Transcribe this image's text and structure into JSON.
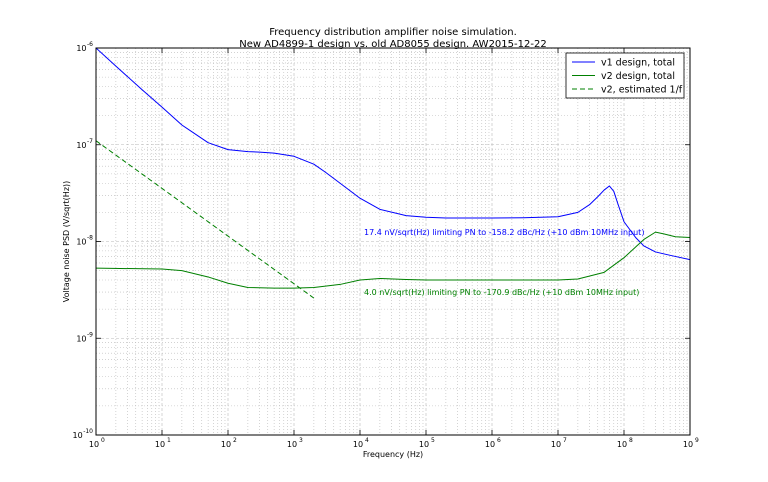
{
  "chart_data": {
    "type": "line",
    "title": "Frequency distribution amplifier noise simulation.",
    "subtitle": "New AD4899-1 design vs. old AD8055 design. AW2015-12-22",
    "xlabel": "Frequency (Hz)",
    "ylabel": "Voltage noise PSD (V/sqrt(Hz))",
    "xscale": "log",
    "yscale": "log",
    "xlim": [
      1,
      1000000000
    ],
    "ylim": [
      1e-10,
      1e-06
    ],
    "grid": true,
    "legend_position": "top-right",
    "x_ticks": [
      {
        "base": "10",
        "exp": "0",
        "value": 1
      },
      {
        "base": "10",
        "exp": "1",
        "value": 10
      },
      {
        "base": "10",
        "exp": "2",
        "value": 100
      },
      {
        "base": "10",
        "exp": "3",
        "value": 1000
      },
      {
        "base": "10",
        "exp": "4",
        "value": 10000
      },
      {
        "base": "10",
        "exp": "5",
        "value": 100000
      },
      {
        "base": "10",
        "exp": "6",
        "value": 1000000
      },
      {
        "base": "10",
        "exp": "7",
        "value": 10000000
      },
      {
        "base": "10",
        "exp": "8",
        "value": 100000000
      },
      {
        "base": "10",
        "exp": "9",
        "value": 1000000000
      }
    ],
    "y_ticks": [
      {
        "base": "10",
        "exp": "-10",
        "value": 1e-10
      },
      {
        "base": "10",
        "exp": "-9",
        "value": 1e-09
      },
      {
        "base": "10",
        "exp": "-8",
        "value": 1e-08
      },
      {
        "base": "10",
        "exp": "-7",
        "value": 1e-07
      },
      {
        "base": "10",
        "exp": "-6",
        "value": 1e-06
      }
    ],
    "series": [
      {
        "name": "v1 design, total",
        "color": "#0000ff",
        "dash": "solid",
        "x": [
          1,
          2,
          5,
          10,
          20,
          50,
          100,
          200,
          300,
          500,
          1000,
          2000,
          3000,
          5000,
          10000,
          20000,
          50000,
          100000,
          200000,
          1000000,
          3000000,
          10000000,
          20000000,
          30000000,
          40000000,
          50000000,
          60000000,
          70000000,
          80000000,
          100000000,
          150000000,
          200000000,
          300000000,
          500000000,
          1000000000
        ],
        "y": [
          1e-06,
          6.5e-07,
          3.7e-07,
          2.45e-07,
          1.6e-07,
          1.05e-07,
          8.9e-08,
          8.5e-08,
          8.4e-08,
          8.2e-08,
          7.6e-08,
          6.3e-08,
          5.2e-08,
          4e-08,
          2.8e-08,
          2.15e-08,
          1.85e-08,
          1.78e-08,
          1.75e-08,
          1.75e-08,
          1.76e-08,
          1.8e-08,
          2e-08,
          2.4e-08,
          2.9e-08,
          3.4e-08,
          3.75e-08,
          3.3e-08,
          2.5e-08,
          1.6e-08,
          1.1e-08,
          9e-09,
          7.8e-09,
          7.2e-09,
          6.5e-09
        ]
      },
      {
        "name": "v2 design, total",
        "color": "#008000",
        "dash": "solid",
        "x": [
          1,
          10,
          20,
          50,
          100,
          200,
          500,
          1000,
          2000,
          5000,
          10000,
          20000,
          50000,
          100000,
          1000000,
          10000000,
          20000000,
          50000000,
          100000000,
          200000000,
          300000000,
          400000000,
          600000000,
          1000000000
        ],
        "y": [
          5.3e-09,
          5.2e-09,
          5e-09,
          4.3e-09,
          3.7e-09,
          3.35e-09,
          3.3e-09,
          3.3e-09,
          3.35e-09,
          3.6e-09,
          4e-09,
          4.15e-09,
          4.05e-09,
          4e-09,
          4e-09,
          4e-09,
          4.1e-09,
          4.8e-09,
          6.8e-09,
          1.05e-08,
          1.25e-08,
          1.2e-08,
          1.12e-08,
          1.1e-08
        ]
      },
      {
        "name": "v2, estimated 1/f",
        "color": "#008000",
        "dash": "dashed",
        "x": [
          1,
          2000
        ],
        "y": [
          1.1e-07,
          2.6e-09
        ]
      }
    ],
    "annotations": [
      {
        "text": "17.4 nV/sqrt(Hz) limiting PN to -158.2 dBc/Hz (+10 dBm 10MHz input)",
        "x": 10000,
        "y": 1.26e-08,
        "color": "#0000ff"
      },
      {
        "text": "4.0 nV/sqrt(Hz) limiting PN to -170.9 dBc/Hz (+10 dBm 10MHz input)",
        "x": 10000,
        "y": 3e-09,
        "color": "#008000"
      }
    ]
  }
}
